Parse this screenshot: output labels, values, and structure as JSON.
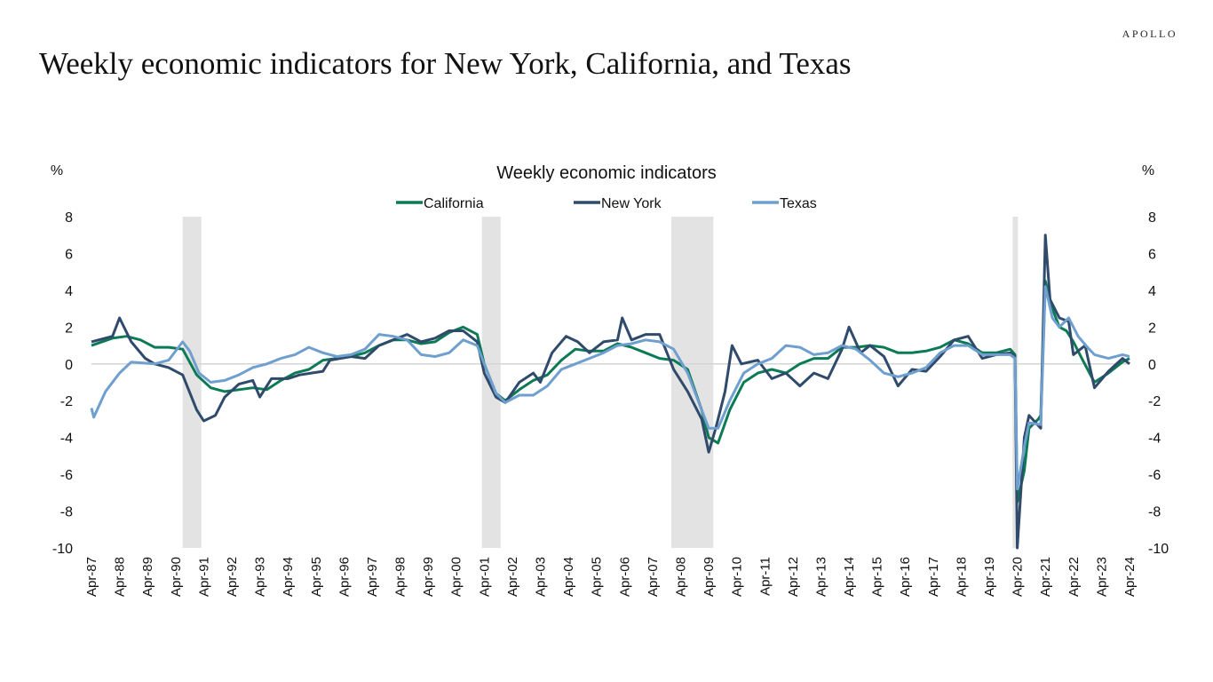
{
  "page": {
    "title": "Weekly economic indicators for New York, California, and Texas",
    "logo": "APOLLO"
  },
  "chart_data": {
    "type": "line",
    "title": "Weekly economic indicators",
    "ylabel_left": "%",
    "ylabel_right": "%",
    "ylim": [
      -10,
      8
    ],
    "yticks": [
      8,
      6,
      4,
      2,
      0,
      -2,
      -4,
      -6,
      -8,
      -10
    ],
    "xlim": [
      "1987-04",
      "2024-04"
    ],
    "xticks": [
      "Apr-87",
      "Apr-88",
      "Apr-89",
      "Apr-90",
      "Apr-91",
      "Apr-92",
      "Apr-93",
      "Apr-94",
      "Apr-95",
      "Apr-96",
      "Apr-97",
      "Apr-98",
      "Apr-99",
      "Apr-00",
      "Apr-01",
      "Apr-02",
      "Apr-03",
      "Apr-04",
      "Apr-05",
      "Apr-06",
      "Apr-07",
      "Apr-08",
      "Apr-09",
      "Apr-10",
      "Apr-11",
      "Apr-12",
      "Apr-13",
      "Apr-14",
      "Apr-15",
      "Apr-16",
      "Apr-17",
      "Apr-18",
      "Apr-19",
      "Apr-20",
      "Apr-21",
      "Apr-22",
      "Apr-23",
      "Apr-24"
    ],
    "grid": false,
    "zero_line": true,
    "legend_position": "top-center",
    "recessions": [
      [
        "1990-07",
        "1991-03"
      ],
      [
        "2001-03",
        "2001-11"
      ],
      [
        "2007-12",
        "2009-06"
      ],
      [
        "2020-02",
        "2020-04"
      ]
    ],
    "recession_color": "#e3e3e3",
    "series": [
      {
        "name": "California",
        "color": "#0b7a55",
        "points": [
          [
            "1987-04",
            1.0
          ],
          [
            "1988-01",
            1.4
          ],
          [
            "1988-07",
            1.5
          ],
          [
            "1989-01",
            1.3
          ],
          [
            "1989-07",
            0.9
          ],
          [
            "1990-01",
            0.9
          ],
          [
            "1990-07",
            0.8
          ],
          [
            "1991-01",
            -0.6
          ],
          [
            "1991-07",
            -1.3
          ],
          [
            "1992-01",
            -1.5
          ],
          [
            "1992-07",
            -1.4
          ],
          [
            "1993-01",
            -1.3
          ],
          [
            "1993-07",
            -1.4
          ],
          [
            "1994-01",
            -0.9
          ],
          [
            "1994-07",
            -0.5
          ],
          [
            "1995-01",
            -0.3
          ],
          [
            "1995-07",
            0.2
          ],
          [
            "1996-01",
            0.3
          ],
          [
            "1996-07",
            0.4
          ],
          [
            "1997-01",
            0.6
          ],
          [
            "1997-07",
            1.0
          ],
          [
            "1998-01",
            1.3
          ],
          [
            "1998-07",
            1.3
          ],
          [
            "1999-01",
            1.1
          ],
          [
            "1999-07",
            1.2
          ],
          [
            "2000-01",
            1.7
          ],
          [
            "2000-07",
            2.0
          ],
          [
            "2001-01",
            1.6
          ],
          [
            "2001-04",
            0.0
          ],
          [
            "2001-09",
            -1.6
          ],
          [
            "2002-01",
            -2.0
          ],
          [
            "2002-07",
            -1.4
          ],
          [
            "2003-01",
            -0.9
          ],
          [
            "2003-07",
            -0.6
          ],
          [
            "2004-01",
            0.2
          ],
          [
            "2004-07",
            0.8
          ],
          [
            "2005-01",
            0.7
          ],
          [
            "2005-07",
            0.7
          ],
          [
            "2006-01",
            1.1
          ],
          [
            "2006-07",
            0.9
          ],
          [
            "2007-01",
            0.6
          ],
          [
            "2007-07",
            0.3
          ],
          [
            "2008-01",
            0.2
          ],
          [
            "2008-07",
            -0.3
          ],
          [
            "2009-01",
            -2.5
          ],
          [
            "2009-04",
            -4.0
          ],
          [
            "2009-08",
            -4.3
          ],
          [
            "2010-01",
            -2.5
          ],
          [
            "2010-07",
            -1.0
          ],
          [
            "2011-01",
            -0.5
          ],
          [
            "2011-07",
            -0.3
          ],
          [
            "2012-01",
            -0.5
          ],
          [
            "2012-07",
            0.0
          ],
          [
            "2013-01",
            0.3
          ],
          [
            "2013-07",
            0.3
          ],
          [
            "2014-01",
            0.9
          ],
          [
            "2014-07",
            0.9
          ],
          [
            "2015-01",
            1.0
          ],
          [
            "2015-07",
            0.9
          ],
          [
            "2016-01",
            0.6
          ],
          [
            "2016-07",
            0.6
          ],
          [
            "2017-01",
            0.7
          ],
          [
            "2017-07",
            0.9
          ],
          [
            "2018-01",
            1.3
          ],
          [
            "2018-07",
            1.1
          ],
          [
            "2019-01",
            0.6
          ],
          [
            "2019-07",
            0.6
          ],
          [
            "2020-01",
            0.8
          ],
          [
            "2020-03",
            0.5
          ],
          [
            "2020-04",
            -7.5
          ],
          [
            "2020-07",
            -5.8
          ],
          [
            "2020-09",
            -3.5
          ],
          [
            "2021-01",
            -3.0
          ],
          [
            "2021-02",
            -2.8
          ],
          [
            "2021-04",
            4.5
          ],
          [
            "2021-07",
            3.0
          ],
          [
            "2021-10",
            2.0
          ],
          [
            "2022-01",
            1.8
          ],
          [
            "2022-04",
            1.2
          ],
          [
            "2022-08",
            0.2
          ],
          [
            "2023-01",
            -1.0
          ],
          [
            "2023-07",
            -0.5
          ],
          [
            "2024-01",
            0.1
          ],
          [
            "2024-04",
            0.3
          ]
        ]
      },
      {
        "name": "New York",
        "color": "#2f4a6b",
        "points": [
          [
            "1987-04",
            1.2
          ],
          [
            "1988-01",
            1.5
          ],
          [
            "1988-04",
            2.5
          ],
          [
            "1988-09",
            1.2
          ],
          [
            "1989-03",
            0.3
          ],
          [
            "1989-07",
            0.0
          ],
          [
            "1990-01",
            -0.2
          ],
          [
            "1990-07",
            -0.6
          ],
          [
            "1991-01",
            -2.5
          ],
          [
            "1991-04",
            -3.1
          ],
          [
            "1991-09",
            -2.8
          ],
          [
            "1992-01",
            -1.8
          ],
          [
            "1992-07",
            -1.1
          ],
          [
            "1993-01",
            -0.9
          ],
          [
            "1993-04",
            -1.8
          ],
          [
            "1993-09",
            -0.8
          ],
          [
            "1994-04",
            -0.8
          ],
          [
            "1994-09",
            -0.6
          ],
          [
            "1995-07",
            -0.4
          ],
          [
            "1995-10",
            0.2
          ],
          [
            "1996-07",
            0.4
          ],
          [
            "1997-01",
            0.3
          ],
          [
            "1997-07",
            1.0
          ],
          [
            "1998-01",
            1.3
          ],
          [
            "1998-07",
            1.6
          ],
          [
            "1999-01",
            1.2
          ],
          [
            "1999-07",
            1.4
          ],
          [
            "2000-01",
            1.8
          ],
          [
            "2000-07",
            1.8
          ],
          [
            "2001-01",
            1.2
          ],
          [
            "2001-04",
            -0.5
          ],
          [
            "2001-09",
            -1.8
          ],
          [
            "2002-01",
            -2.1
          ],
          [
            "2002-07",
            -1.0
          ],
          [
            "2003-01",
            -0.5
          ],
          [
            "2003-04",
            -1.0
          ],
          [
            "2003-09",
            0.6
          ],
          [
            "2004-03",
            1.5
          ],
          [
            "2004-08",
            1.2
          ],
          [
            "2005-01",
            0.6
          ],
          [
            "2005-07",
            1.2
          ],
          [
            "2006-01",
            1.3
          ],
          [
            "2006-03",
            2.5
          ],
          [
            "2006-07",
            1.3
          ],
          [
            "2007-01",
            1.6
          ],
          [
            "2007-07",
            1.6
          ],
          [
            "2008-01",
            -0.3
          ],
          [
            "2008-07",
            -1.5
          ],
          [
            "2009-01",
            -3.0
          ],
          [
            "2009-04",
            -4.8
          ],
          [
            "2009-07",
            -3.5
          ],
          [
            "2009-11",
            -1.5
          ],
          [
            "2010-02",
            1.0
          ],
          [
            "2010-06",
            0.0
          ],
          [
            "2011-01",
            0.2
          ],
          [
            "2011-07",
            -0.8
          ],
          [
            "2012-01",
            -0.5
          ],
          [
            "2012-07",
            -1.2
          ],
          [
            "2013-01",
            -0.5
          ],
          [
            "2013-07",
            -0.8
          ],
          [
            "2014-01",
            0.8
          ],
          [
            "2014-04",
            2.0
          ],
          [
            "2014-09",
            0.6
          ],
          [
            "2015-01",
            1.0
          ],
          [
            "2015-07",
            0.4
          ],
          [
            "2016-01",
            -1.2
          ],
          [
            "2016-07",
            -0.3
          ],
          [
            "2017-01",
            -0.4
          ],
          [
            "2017-07",
            0.4
          ],
          [
            "2018-01",
            1.3
          ],
          [
            "2018-07",
            1.5
          ],
          [
            "2019-01",
            0.3
          ],
          [
            "2019-07",
            0.5
          ],
          [
            "2020-01",
            0.6
          ],
          [
            "2020-03",
            0.4
          ],
          [
            "2020-04",
            -10.0
          ],
          [
            "2020-07",
            -4.0
          ],
          [
            "2020-09",
            -2.8
          ],
          [
            "2021-02",
            -3.5
          ],
          [
            "2021-04",
            7.0
          ],
          [
            "2021-06",
            3.5
          ],
          [
            "2021-10",
            2.5
          ],
          [
            "2022-02",
            2.3
          ],
          [
            "2022-04",
            0.5
          ],
          [
            "2022-09",
            1.0
          ],
          [
            "2023-01",
            -1.3
          ],
          [
            "2023-07",
            -0.4
          ],
          [
            "2024-01",
            0.3
          ],
          [
            "2024-04",
            0.0
          ]
        ]
      },
      {
        "name": "Texas",
        "color": "#6e9fcf",
        "points": [
          [
            "1987-04",
            -2.4
          ],
          [
            "1987-05",
            -2.9
          ],
          [
            "1987-10",
            -1.5
          ],
          [
            "1988-04",
            -0.5
          ],
          [
            "1988-09",
            0.1
          ],
          [
            "1989-07",
            0.0
          ],
          [
            "1990-01",
            0.2
          ],
          [
            "1990-07",
            1.2
          ],
          [
            "1990-10",
            0.7
          ],
          [
            "1991-02",
            -0.5
          ],
          [
            "1991-07",
            -1.0
          ],
          [
            "1992-01",
            -0.9
          ],
          [
            "1992-07",
            -0.6
          ],
          [
            "1993-01",
            -0.2
          ],
          [
            "1993-07",
            0.0
          ],
          [
            "1994-01",
            0.3
          ],
          [
            "1994-07",
            0.5
          ],
          [
            "1995-01",
            0.9
          ],
          [
            "1995-07",
            0.6
          ],
          [
            "1996-01",
            0.4
          ],
          [
            "1996-07",
            0.5
          ],
          [
            "1997-01",
            0.8
          ],
          [
            "1997-07",
            1.6
          ],
          [
            "1998-01",
            1.5
          ],
          [
            "1998-07",
            1.3
          ],
          [
            "1999-01",
            0.5
          ],
          [
            "1999-07",
            0.4
          ],
          [
            "2000-01",
            0.6
          ],
          [
            "2000-07",
            1.3
          ],
          [
            "2001-01",
            1.0
          ],
          [
            "2001-04",
            0.0
          ],
          [
            "2001-09",
            -1.6
          ],
          [
            "2002-01",
            -2.1
          ],
          [
            "2002-07",
            -1.7
          ],
          [
            "2003-01",
            -1.7
          ],
          [
            "2003-07",
            -1.2
          ],
          [
            "2004-01",
            -0.3
          ],
          [
            "2004-07",
            0.0
          ],
          [
            "2005-01",
            0.3
          ],
          [
            "2005-07",
            0.6
          ],
          [
            "2006-01",
            1.0
          ],
          [
            "2006-07",
            1.1
          ],
          [
            "2007-01",
            1.3
          ],
          [
            "2007-07",
            1.2
          ],
          [
            "2008-01",
            0.8
          ],
          [
            "2008-07",
            -0.5
          ],
          [
            "2009-01",
            -2.5
          ],
          [
            "2009-04",
            -3.5
          ],
          [
            "2009-08",
            -3.5
          ],
          [
            "2010-01",
            -2.0
          ],
          [
            "2010-07",
            -0.5
          ],
          [
            "2011-01",
            0.0
          ],
          [
            "2011-07",
            0.3
          ],
          [
            "2012-01",
            1.0
          ],
          [
            "2012-07",
            0.9
          ],
          [
            "2013-01",
            0.5
          ],
          [
            "2013-07",
            0.6
          ],
          [
            "2014-01",
            1.0
          ],
          [
            "2014-07",
            0.8
          ],
          [
            "2015-01",
            0.2
          ],
          [
            "2015-07",
            -0.5
          ],
          [
            "2016-01",
            -0.7
          ],
          [
            "2016-07",
            -0.5
          ],
          [
            "2017-01",
            -0.2
          ],
          [
            "2017-07",
            0.6
          ],
          [
            "2018-01",
            1.0
          ],
          [
            "2018-07",
            1.0
          ],
          [
            "2019-01",
            0.5
          ],
          [
            "2019-07",
            0.5
          ],
          [
            "2020-01",
            0.5
          ],
          [
            "2020-03",
            0.3
          ],
          [
            "2020-04",
            -6.8
          ],
          [
            "2020-07",
            -4.5
          ],
          [
            "2020-09",
            -3.2
          ],
          [
            "2021-02",
            -3.3
          ],
          [
            "2021-04",
            4.2
          ],
          [
            "2021-07",
            2.5
          ],
          [
            "2021-10",
            2.0
          ],
          [
            "2022-02",
            2.5
          ],
          [
            "2022-06",
            1.5
          ],
          [
            "2022-10",
            0.9
          ],
          [
            "2023-01",
            0.5
          ],
          [
            "2023-07",
            0.3
          ],
          [
            "2024-01",
            0.5
          ],
          [
            "2024-04",
            0.4
          ]
        ]
      }
    ]
  }
}
